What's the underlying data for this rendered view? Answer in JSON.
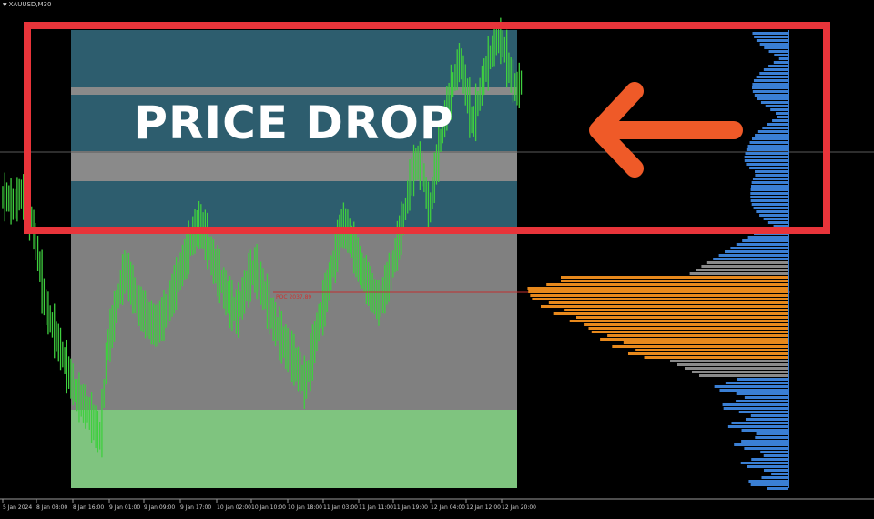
{
  "window": {
    "symbol_title": "XAUUSD,M30"
  },
  "annotation": {
    "caption": "PRICE DROP",
    "arrow_icon": "left-arrow-icon"
  },
  "poc_label": "POC 2037.89",
  "time_axis": {
    "labels": [
      "5 Jan 2024",
      "8 Jan 08:00",
      "8 Jan 16:00",
      "9 Jan 01:00",
      "9 Jan 09:00",
      "9 Jan 17:00",
      "10 Jan 02:00",
      "10 Jan 10:00",
      "10 Jan 18:00",
      "11 Jan 03:00",
      "11 Jan 11:00",
      "11 Jan 19:00",
      "12 Jan 04:00",
      "12 Jan 12:00",
      "12 Jan 20:00"
    ]
  },
  "colors": {
    "background": "#000000",
    "value_area": "#808080",
    "upper_zone": "#2d5d6e",
    "lower_zone": "#7fc47f",
    "candles": "#3fcf3f",
    "profile_blue": "#3a7fd4",
    "profile_orange": "#e8891c",
    "profile_gray": "#8a8a8a",
    "highlight_frame": "#e8343a",
    "arrow": "#ef5a28",
    "poc_line": "#c03030"
  },
  "chart_data": {
    "type": "candlestick",
    "price_series_close": [
      0.64,
      0.62,
      0.65,
      0.63,
      0.58,
      0.5,
      0.4,
      0.36,
      0.32,
      0.28,
      0.24,
      0.2,
      0.18,
      0.16,
      0.13,
      0.1,
      0.3,
      0.36,
      0.43,
      0.48,
      0.44,
      0.4,
      0.38,
      0.36,
      0.35,
      0.37,
      0.4,
      0.44,
      0.48,
      0.52,
      0.56,
      0.58,
      0.55,
      0.5,
      0.47,
      0.43,
      0.4,
      0.38,
      0.42,
      0.46,
      0.48,
      0.44,
      0.4,
      0.36,
      0.33,
      0.3,
      0.28,
      0.25,
      0.22,
      0.28,
      0.35,
      0.4,
      0.46,
      0.52,
      0.58,
      0.56,
      0.52,
      0.48,
      0.45,
      0.42,
      0.4,
      0.44,
      0.48,
      0.54,
      0.6,
      0.68,
      0.72,
      0.7,
      0.6,
      0.7,
      0.78,
      0.85,
      0.9,
      0.95,
      0.88,
      0.8,
      0.86,
      0.92,
      0.96,
      1.0,
      0.98,
      0.92,
      0.88,
      0.9
    ]
  }
}
